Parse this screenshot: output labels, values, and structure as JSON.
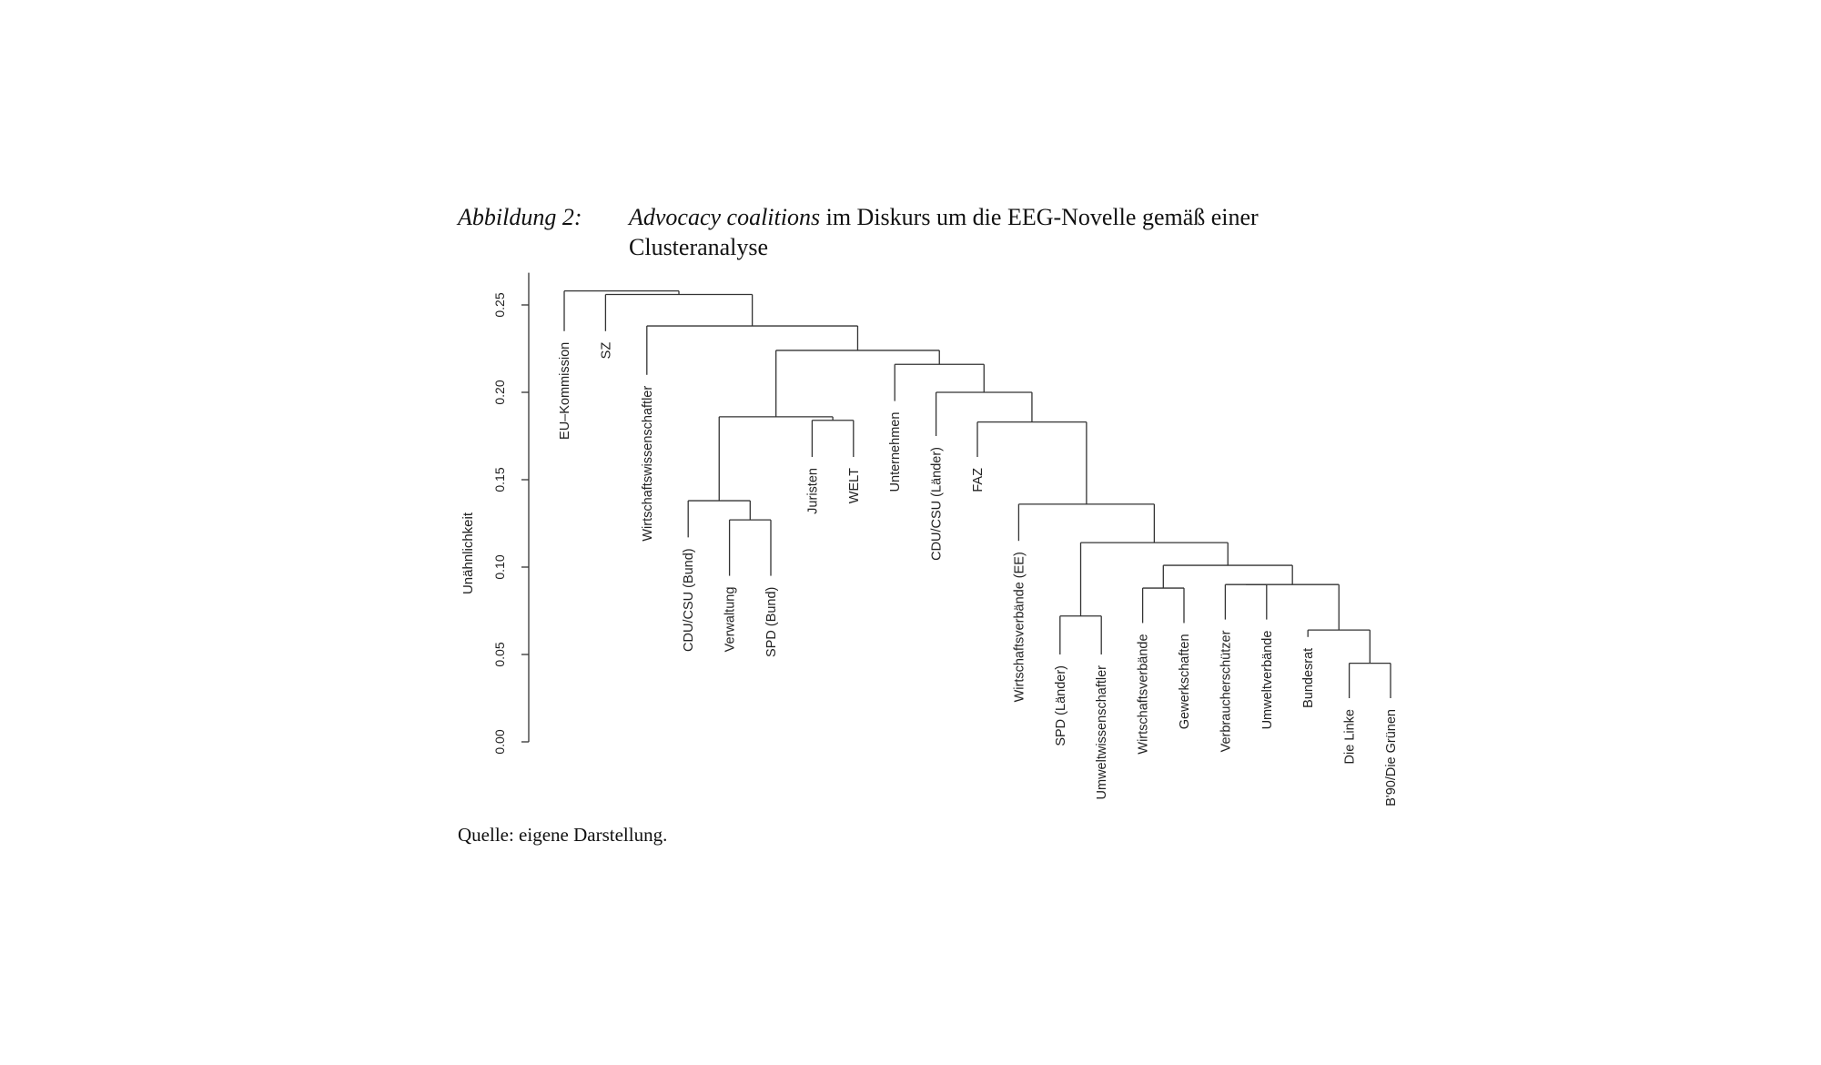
{
  "caption": {
    "label": "Abbildung 2:",
    "title_italic": "Advocacy coalitions",
    "title_rest_line1": " im Diskurs um die EEG-Novelle gemäß einer",
    "title_line2": "Clusteranalyse"
  },
  "source": "Quelle: eigene Darstellung.",
  "chart_data": {
    "type": "dendrogram",
    "ylabel": "Unähnlichkeit",
    "ylim": [
      0,
      0.27
    ],
    "yticks": [
      0.0,
      0.05,
      0.1,
      0.15,
      0.2,
      0.25
    ],
    "ytick_labels": [
      "0.00",
      "0.05",
      "0.10",
      "0.15",
      "0.20",
      "0.25"
    ],
    "leaves": [
      {
        "name": "EU–Kommission",
        "height": 0.235
      },
      {
        "name": "SZ",
        "height": 0.235
      },
      {
        "name": "Wirtschaftswissenschaftler",
        "height": 0.21
      },
      {
        "name": "CDU/CSU (Bund)",
        "height": 0.117
      },
      {
        "name": "Verwaltung",
        "height": 0.095
      },
      {
        "name": "SPD (Bund)",
        "height": 0.095
      },
      {
        "name": "Juristen",
        "height": 0.163
      },
      {
        "name": "WELT",
        "height": 0.163
      },
      {
        "name": "Unternehmen",
        "height": 0.195
      },
      {
        "name": "CDU/CSU (Länder)",
        "height": 0.175
      },
      {
        "name": "FAZ",
        "height": 0.163
      },
      {
        "name": "Wirtschaftsverbände (EE)",
        "height": 0.115
      },
      {
        "name": "SPD (Länder)",
        "height": 0.05
      },
      {
        "name": "Umweltwissenschaftler",
        "height": 0.05
      },
      {
        "name": "Wirtschaftsverbände",
        "height": 0.068
      },
      {
        "name": "Gewerkschaften",
        "height": 0.068
      },
      {
        "name": "Verbraucherschützer",
        "height": 0.07
      },
      {
        "name": "Umweltverbände",
        "height": 0.07
      },
      {
        "name": "Bundesrat",
        "height": 0.06
      },
      {
        "name": "Die Linke",
        "height": 0.025
      },
      {
        "name": "B'90/Die Grünen",
        "height": 0.025
      }
    ],
    "merges": [
      {
        "left": "L19",
        "right": "L20",
        "height": 0.045
      },
      {
        "left": "L18",
        "right": "M0",
        "height": 0.064
      },
      {
        "left": "L12",
        "right": "L13",
        "height": 0.072
      },
      {
        "left": "L14",
        "right": "L15",
        "height": 0.088
      },
      {
        "left": "L16",
        "right": "L17",
        "height": 0.09
      },
      {
        "left": "M4",
        "right": "M1",
        "height": 0.09
      },
      {
        "left": "M3",
        "right": "M5",
        "height": 0.101
      },
      {
        "left": "M2",
        "right": "M6",
        "height": 0.114
      },
      {
        "left": "L11",
        "right": "M7",
        "height": 0.136
      },
      {
        "left": "L10",
        "right": "M8",
        "height": 0.183
      },
      {
        "left": "L9",
        "right": "M9",
        "height": 0.2
      },
      {
        "left": "L8",
        "right": "M10",
        "height": 0.216
      },
      {
        "left": "L4",
        "right": "L5",
        "height": 0.127
      },
      {
        "left": "L3",
        "right": "M12",
        "height": 0.138
      },
      {
        "left": "L6",
        "right": "L7",
        "height": 0.184
      },
      {
        "left": "M13",
        "right": "M14",
        "height": 0.186
      },
      {
        "left": "M15",
        "right": "M11",
        "height": 0.224
      },
      {
        "left": "L2",
        "right": "M16",
        "height": 0.238
      },
      {
        "left": "L1",
        "right": "M17",
        "height": 0.256
      },
      {
        "left": "L0",
        "right": "M18",
        "height": 0.258
      }
    ]
  }
}
